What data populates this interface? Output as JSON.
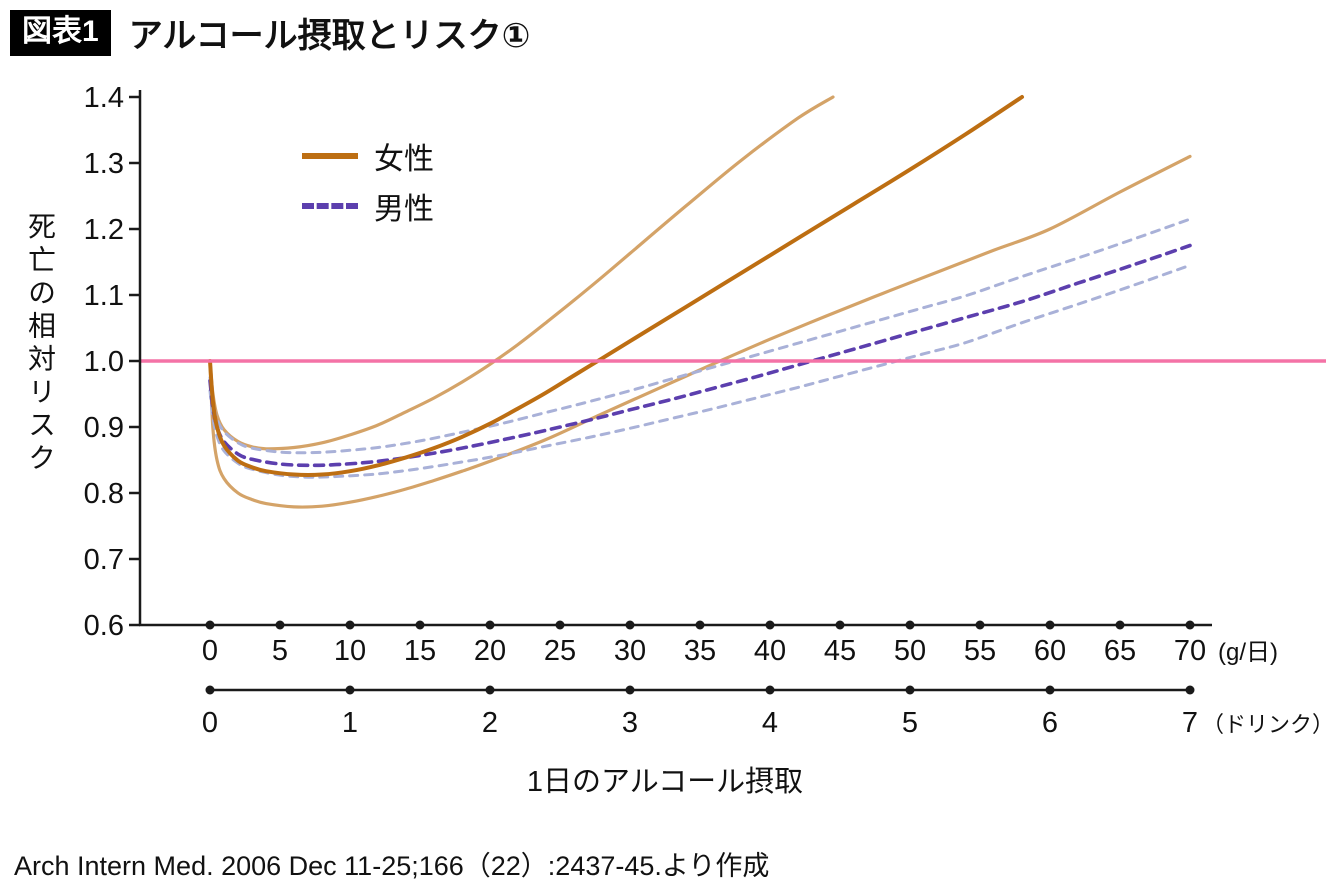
{
  "header": {
    "badge": "図表1",
    "title": "アルコール摂取とリスク①"
  },
  "legend": [
    {
      "label": "女性",
      "color": "#bd6e12",
      "dashed": false
    },
    {
      "label": "男性",
      "color": "#5c3fae",
      "dashed": true
    }
  ],
  "source": "Arch Intern Med. 2006 Dec 11-25;166（22）:2437-45.より作成",
  "chart_data": {
    "type": "line",
    "title": "アルコール摂取とリスク①",
    "xlabel": "1日のアルコール摂取",
    "ylabel": "死亡の相対リスク",
    "ylim": [
      0.6,
      1.4
    ],
    "yticks": [
      0.6,
      0.7,
      0.8,
      0.9,
      1.0,
      1.1,
      1.2,
      1.3,
      1.4
    ],
    "x_axis_g": {
      "unit": "(g/日)",
      "ticks": [
        0,
        5,
        10,
        15,
        20,
        25,
        30,
        35,
        40,
        45,
        50,
        55,
        60,
        65,
        70
      ],
      "max": 70
    },
    "x_axis_drinks": {
      "unit": "（ドリンク）",
      "ticks": [
        0,
        1,
        2,
        3,
        4,
        5,
        6,
        7
      ],
      "max": 7
    },
    "grid": false,
    "legend_position": "upper-left-inside",
    "reference_line": {
      "y": 1.0,
      "color": "#f472a6"
    },
    "axis_color": "#1a1a1a",
    "series": [
      {
        "id": "female-ci-upper",
        "name": "女性",
        "role": "upper",
        "color": "#d4a368",
        "width": 3.2,
        "dash": "",
        "points": [
          [
            0,
            1.0
          ],
          [
            0.2,
            0.952
          ],
          [
            0.5,
            0.918
          ],
          [
            1,
            0.896
          ],
          [
            2,
            0.878
          ],
          [
            3,
            0.87
          ],
          [
            4,
            0.867
          ],
          [
            6,
            0.869
          ],
          [
            8,
            0.876
          ],
          [
            10,
            0.888
          ],
          [
            12,
            0.903
          ],
          [
            14,
            0.923
          ],
          [
            16,
            0.944
          ],
          [
            18,
            0.968
          ],
          [
            20,
            0.995
          ],
          [
            22,
            1.025
          ],
          [
            24,
            1.058
          ],
          [
            26,
            1.092
          ],
          [
            28,
            1.127
          ],
          [
            30,
            1.163
          ],
          [
            34,
            1.235
          ],
          [
            38,
            1.305
          ],
          [
            42,
            1.368
          ],
          [
            44.5,
            1.4
          ]
        ]
      },
      {
        "id": "female-ci-lower",
        "name": "女性",
        "role": "lower",
        "color": "#d4a368",
        "width": 3.2,
        "dash": "",
        "points": [
          [
            0,
            1.0
          ],
          [
            0.2,
            0.9
          ],
          [
            0.5,
            0.85
          ],
          [
            1,
            0.822
          ],
          [
            2,
            0.8
          ],
          [
            3,
            0.79
          ],
          [
            4,
            0.784
          ],
          [
            6,
            0.779
          ],
          [
            8,
            0.78
          ],
          [
            10,
            0.786
          ],
          [
            12,
            0.795
          ],
          [
            14,
            0.806
          ],
          [
            16,
            0.819
          ],
          [
            18,
            0.833
          ],
          [
            20,
            0.848
          ],
          [
            24,
            0.881
          ],
          [
            28,
            0.92
          ],
          [
            32,
            0.958
          ],
          [
            36,
            0.996
          ],
          [
            40,
            1.033
          ],
          [
            44,
            1.068
          ],
          [
            48,
            1.102
          ],
          [
            52,
            1.135
          ],
          [
            56,
            1.168
          ],
          [
            60,
            1.2
          ],
          [
            65,
            1.256
          ],
          [
            70,
            1.31
          ]
        ]
      },
      {
        "id": "male-ci-upper",
        "name": "男性",
        "role": "upper",
        "color": "#a9b1d8",
        "width": 3,
        "dash": "8 7",
        "points": [
          [
            0,
            0.975
          ],
          [
            0.2,
            0.94
          ],
          [
            0.5,
            0.912
          ],
          [
            1,
            0.893
          ],
          [
            2,
            0.876
          ],
          [
            3,
            0.868
          ],
          [
            5,
            0.862
          ],
          [
            7,
            0.861
          ],
          [
            9,
            0.863
          ],
          [
            12,
            0.869
          ],
          [
            15,
            0.879
          ],
          [
            18,
            0.892
          ],
          [
            21,
            0.906
          ],
          [
            24,
            0.922
          ],
          [
            27,
            0.938
          ],
          [
            30,
            0.955
          ],
          [
            33,
            0.973
          ],
          [
            36,
            0.991
          ],
          [
            39,
            1.009
          ],
          [
            42,
            1.027
          ],
          [
            45,
            1.045
          ],
          [
            48,
            1.063
          ],
          [
            51,
            1.081
          ],
          [
            54,
            1.099
          ],
          [
            58,
            1.128
          ],
          [
            62,
            1.156
          ],
          [
            66,
            1.185
          ],
          [
            70,
            1.215
          ]
        ]
      },
      {
        "id": "male-ci-lower",
        "name": "男性",
        "role": "lower",
        "color": "#a9b1d8",
        "width": 3,
        "dash": "8 7",
        "points": [
          [
            0,
            0.955
          ],
          [
            0.2,
            0.915
          ],
          [
            0.5,
            0.886
          ],
          [
            1,
            0.864
          ],
          [
            2,
            0.845
          ],
          [
            3,
            0.836
          ],
          [
            5,
            0.827
          ],
          [
            7,
            0.824
          ],
          [
            9,
            0.825
          ],
          [
            12,
            0.829
          ],
          [
            15,
            0.837
          ],
          [
            18,
            0.847
          ],
          [
            21,
            0.858
          ],
          [
            24,
            0.871
          ],
          [
            27,
            0.884
          ],
          [
            30,
            0.898
          ],
          [
            33,
            0.913
          ],
          [
            36,
            0.928
          ],
          [
            39,
            0.944
          ],
          [
            42,
            0.96
          ],
          [
            45,
            0.977
          ],
          [
            48,
            0.994
          ],
          [
            51,
            1.011
          ],
          [
            54,
            1.028
          ],
          [
            58,
            1.058
          ],
          [
            62,
            1.086
          ],
          [
            66,
            1.115
          ],
          [
            70,
            1.145
          ]
        ]
      },
      {
        "id": "male-center",
        "name": "男性",
        "role": "center",
        "color": "#5c3fae",
        "width": 3.6,
        "dash": "9 7",
        "points": [
          [
            0,
            0.97
          ],
          [
            0.2,
            0.93
          ],
          [
            0.5,
            0.9
          ],
          [
            1,
            0.878
          ],
          [
            2,
            0.859
          ],
          [
            3,
            0.851
          ],
          [
            5,
            0.844
          ],
          [
            7,
            0.842
          ],
          [
            9,
            0.843
          ],
          [
            12,
            0.848
          ],
          [
            15,
            0.857
          ],
          [
            18,
            0.868
          ],
          [
            21,
            0.881
          ],
          [
            24,
            0.895
          ],
          [
            27,
            0.91
          ],
          [
            30,
            0.926
          ],
          [
            33,
            0.942
          ],
          [
            36,
            0.959
          ],
          [
            39,
            0.976
          ],
          [
            42,
            0.994
          ],
          [
            45,
            1.012
          ],
          [
            48,
            1.03
          ],
          [
            51,
            1.048
          ],
          [
            54,
            1.066
          ],
          [
            58,
            1.09
          ],
          [
            62,
            1.118
          ],
          [
            66,
            1.146
          ],
          [
            70,
            1.175
          ]
        ]
      },
      {
        "id": "female-center",
        "name": "女性",
        "role": "center",
        "color": "#bd6e12",
        "width": 4,
        "dash": "",
        "points": [
          [
            0,
            1.0
          ],
          [
            0.2,
            0.94
          ],
          [
            0.5,
            0.9
          ],
          [
            1,
            0.872
          ],
          [
            2,
            0.849
          ],
          [
            3,
            0.839
          ],
          [
            4,
            0.833
          ],
          [
            6,
            0.828
          ],
          [
            8,
            0.828
          ],
          [
            10,
            0.833
          ],
          [
            12,
            0.842
          ],
          [
            14,
            0.854
          ],
          [
            16,
            0.868
          ],
          [
            18,
            0.885
          ],
          [
            20,
            0.905
          ],
          [
            22,
            0.928
          ],
          [
            24,
            0.952
          ],
          [
            26,
            0.978
          ],
          [
            28,
            1.004
          ],
          [
            30,
            1.03
          ],
          [
            34,
            1.082
          ],
          [
            38,
            1.134
          ],
          [
            42,
            1.186
          ],
          [
            46,
            1.238
          ],
          [
            50,
            1.29
          ],
          [
            54,
            1.344
          ],
          [
            58,
            1.4
          ]
        ]
      }
    ]
  }
}
